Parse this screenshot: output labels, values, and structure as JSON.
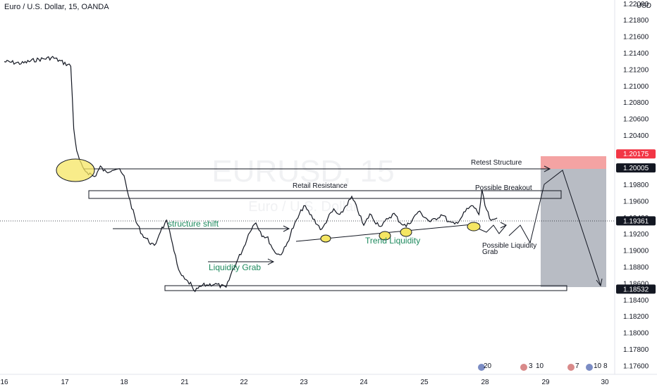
{
  "header": {
    "symbol_title": "Euro / U.S. Dollar, 15, OANDA",
    "currency": "USD",
    "watermark_symbol": "EURUSD, 15",
    "watermark_name": "Euro / U.S. Dollar"
  },
  "colors": {
    "candle": "#131722",
    "sell_zone_top": "#f4a3a3",
    "sell_zone_body": "#b8bcc4",
    "highlight_ellipse": "#f5e663",
    "ann_text_green": "#1e8a5e",
    "ann_text_dark": "#131722",
    "price_tag_red": "#f23645",
    "price_tag_dark": "#131722"
  },
  "annotations": {
    "retest_structure": "Retest Structure",
    "retail_resistance": "Retail Resistance",
    "possible_breakout": "Possible Breakout",
    "structure_shift": "structure shift",
    "liquidity_grab": "Liquidity Grab",
    "trend_liquidity": "Trend Liquidity",
    "possible_liquidity_grab_1": "Possible Liquidity",
    "possible_liquidity_grab_2": "Grab"
  },
  "price_tags": [
    {
      "value": "1.20175",
      "style": "red"
    },
    {
      "value": "1.20005",
      "style": "dark"
    },
    {
      "value": "1.19361",
      "style": "dark"
    },
    {
      "value": "1.18532",
      "style": "dark"
    }
  ],
  "chart_data": {
    "type": "line",
    "series": [
      {
        "x": [
          0,
          0.3,
          0.5,
          0.8,
          1.0,
          1.1,
          1.15,
          1.2,
          1.3,
          1.4,
          1.5,
          1.6,
          1.7,
          1.8,
          1.9,
          2.0,
          2.1,
          2.2,
          2.3,
          2.5,
          2.6,
          2.7,
          2.8,
          2.9,
          3.0,
          3.1,
          3.15,
          3.3,
          3.5,
          3.7,
          3.8,
          3.9,
          4.0,
          4.1,
          4.2,
          4.3,
          4.4,
          4.5,
          4.6,
          4.7,
          4.8,
          4.9,
          5.0,
          5.1,
          5.2,
          5.3,
          5.4,
          5.5,
          5.6,
          5.7,
          5.8,
          5.9,
          6.0,
          6.1,
          6.2,
          6.3,
          6.4,
          6.5,
          6.6,
          6.7,
          6.8,
          6.9,
          7.0,
          7.1,
          7.2,
          7.3,
          7.4,
          7.5,
          7.6,
          7.7,
          7.8,
          7.9,
          7.95,
          8.0,
          8.05,
          8.1,
          8.2
        ],
        "values": [
          1.213,
          1.2128,
          1.2132,
          1.2135,
          1.2128,
          1.2125,
          1.205,
          1.202,
          1.2,
          1.1995,
          1.199,
          1.2002,
          1.1995,
          1.2,
          1.2,
          1.199,
          1.196,
          1.1935,
          1.192,
          1.1905,
          1.1925,
          1.1935,
          1.191,
          1.1875,
          1.1865,
          1.186,
          1.185,
          1.1858,
          1.186,
          1.1855,
          1.1875,
          1.189,
          1.1905,
          1.1925,
          1.1935,
          1.192,
          1.1915,
          1.19,
          1.1895,
          1.1905,
          1.1925,
          1.194,
          1.1955,
          1.1945,
          1.1935,
          1.1925,
          1.194,
          1.195,
          1.1942,
          1.1955,
          1.1965,
          1.195,
          1.193,
          1.1945,
          1.1935,
          1.193,
          1.194,
          1.1945,
          1.1935,
          1.193,
          1.1938,
          1.1948,
          1.1942,
          1.1935,
          1.194,
          1.1945,
          1.1935,
          1.1932,
          1.194,
          1.195,
          1.1955,
          1.1945,
          1.1972,
          1.1955,
          1.1945,
          1.1935,
          1.194
        ]
      }
    ],
    "x_ticks": [
      {
        "label": "16",
        "x": 0
      },
      {
        "label": "17",
        "x": 1
      },
      {
        "label": "18",
        "x": 2
      },
      {
        "label": "21",
        "x": 3
      },
      {
        "label": "22",
        "x": 4
      },
      {
        "label": "23",
        "x": 5
      },
      {
        "label": "24",
        "x": 6
      },
      {
        "label": "25",
        "x": 7
      },
      {
        "label": "28",
        "x": 8
      },
      {
        "label": "29",
        "x": 9
      },
      {
        "label": "30",
        "x": 10
      }
    ],
    "y_ticks": [
      "1.22000",
      "1.21800",
      "1.21600",
      "1.21400",
      "1.21200",
      "1.21000",
      "1.20800",
      "1.20600",
      "1.20400",
      "1.20200",
      "1.20000",
      "1.19800",
      "1.19600",
      "1.19400",
      "1.19200",
      "1.19000",
      "1.18800",
      "1.18600",
      "1.18400",
      "1.18200",
      "1.18000",
      "1.17800",
      "1.17600"
    ],
    "ylim": [
      1.175,
      1.2205
    ],
    "xlim": [
      0,
      10
    ],
    "grid": false,
    "levels": {
      "retest_structure": 1.20005,
      "sell_zone_top": 1.20175,
      "target": 1.18532,
      "current_price": 1.19361
    }
  },
  "event_markers": [
    "20",
    "3",
    "10",
    "7",
    "10",
    "8"
  ]
}
